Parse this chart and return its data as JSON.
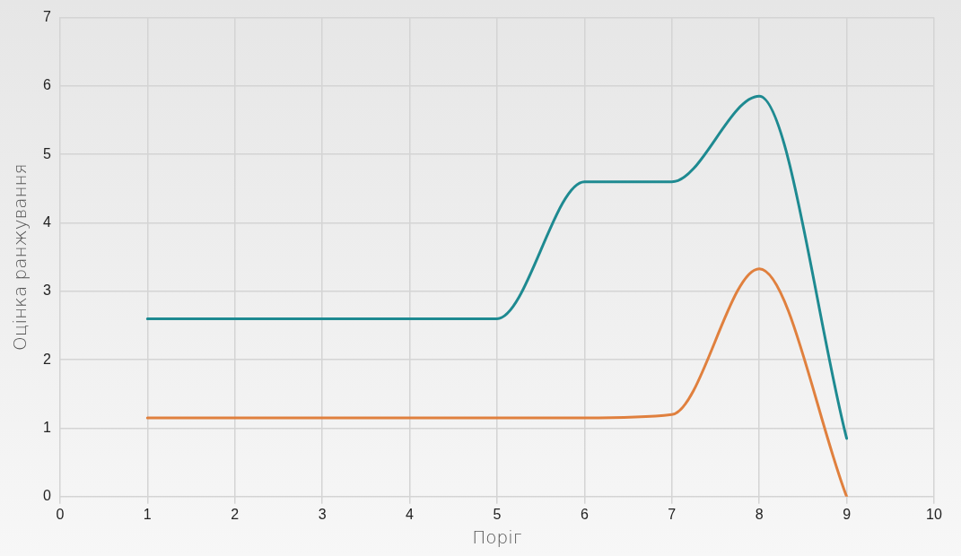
{
  "chart_data": {
    "type": "line",
    "xlabel": "Поріг",
    "ylabel": "Оцінка ранжування",
    "x": [
      1,
      2,
      3,
      4,
      5,
      6,
      7,
      8,
      9
    ],
    "series": [
      {
        "color": "#1e8a91",
        "values": [
          2.6,
          2.6,
          2.6,
          2.6,
          2.6,
          4.6,
          4.6,
          5.85,
          0.85
        ]
      },
      {
        "color": "#e0803e",
        "values": [
          1.15,
          1.15,
          1.15,
          1.15,
          1.15,
          1.15,
          1.2,
          3.33,
          0
        ]
      }
    ],
    "xlim": [
      0,
      10
    ],
    "xticks": [
      0,
      1,
      2,
      3,
      4,
      5,
      6,
      7,
      8,
      9,
      10
    ],
    "ylim": [
      0,
      7
    ],
    "yticks": [
      0,
      1,
      2,
      3,
      4,
      5,
      6,
      7
    ],
    "grid": true,
    "legend": false,
    "marker": "none",
    "line_style": "solid"
  }
}
